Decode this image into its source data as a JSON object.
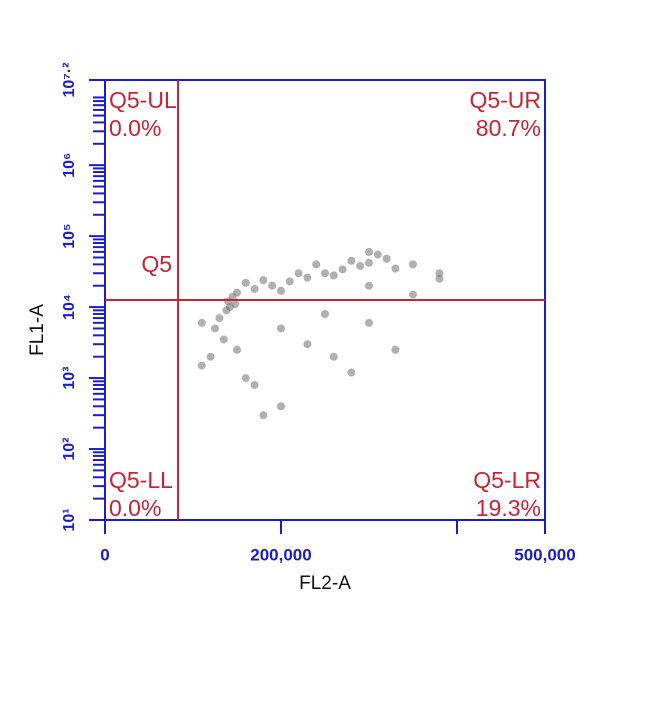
{
  "chart_data": {
    "type": "scatter",
    "xlabel": "FL2-A",
    "ylabel": "FL1-A",
    "xlim": [
      0,
      500000
    ],
    "xticks": [
      0,
      {
        "value": 200000,
        "label": "200,000"
      },
      {
        "value": 500000,
        "label": "500,000"
      }
    ],
    "xticks_unlabeled": [
      400000
    ],
    "ylim": [
      10,
      15848932
    ],
    "ylog": true,
    "yticks": [
      {
        "value": 10,
        "label": "10¹"
      },
      {
        "value": 100,
        "label": "10²"
      },
      {
        "value": 1000,
        "label": "10³"
      },
      {
        "value": 10000,
        "label": "10⁴"
      },
      {
        "value": 100000,
        "label": "10⁵"
      },
      {
        "value": 1000000,
        "label": "10⁶"
      },
      {
        "value": 15848932,
        "label": "10⁷·²"
      }
    ],
    "axis_color": "#1c1ccc",
    "series": [
      {
        "color": "#707070",
        "x": [
          140000,
          145000,
          142000,
          150000,
          138000,
          148000,
          170000,
          190000,
          210000,
          230000,
          250000,
          270000,
          290000,
          300000,
          280000,
          260000,
          220000,
          200000,
          180000,
          310000,
          320000,
          330000,
          350000,
          380000,
          300000,
          240000,
          160000,
          130000,
          125000,
          135000,
          150000,
          120000,
          110000,
          200000,
          230000,
          260000,
          280000,
          170000,
          200000,
          180000,
          160000,
          250000,
          300000,
          330000,
          110000,
          350000,
          300000,
          380000
        ],
        "values": [
          12000,
          14000,
          10000,
          16000,
          9000,
          11000,
          18000,
          20000,
          23000,
          26000,
          30000,
          34000,
          38000,
          42000,
          45000,
          28000,
          30000,
          17000,
          24000,
          55000,
          48000,
          35000,
          40000,
          30000,
          60000,
          40000,
          22000,
          7000,
          5000,
          3500,
          2500,
          2000,
          1500,
          5000,
          3000,
          2000,
          1200,
          800,
          400,
          300,
          1000,
          8000,
          6000,
          2500,
          6000,
          15000,
          20000,
          25000
        ]
      }
    ],
    "gate": {
      "name": "Q5",
      "x": 83000,
      "y": 12600,
      "color": "#cc2233"
    },
    "quadrants": {
      "names": [
        "Q5-UL",
        "Q5-UR",
        "Q5-LL",
        "Q5-LR"
      ],
      "values": [
        0.0,
        80.7,
        0.0,
        19.3
      ],
      "value_labels": [
        "0.0%",
        "80.7%",
        "0.0%",
        "19.3%"
      ]
    }
  }
}
